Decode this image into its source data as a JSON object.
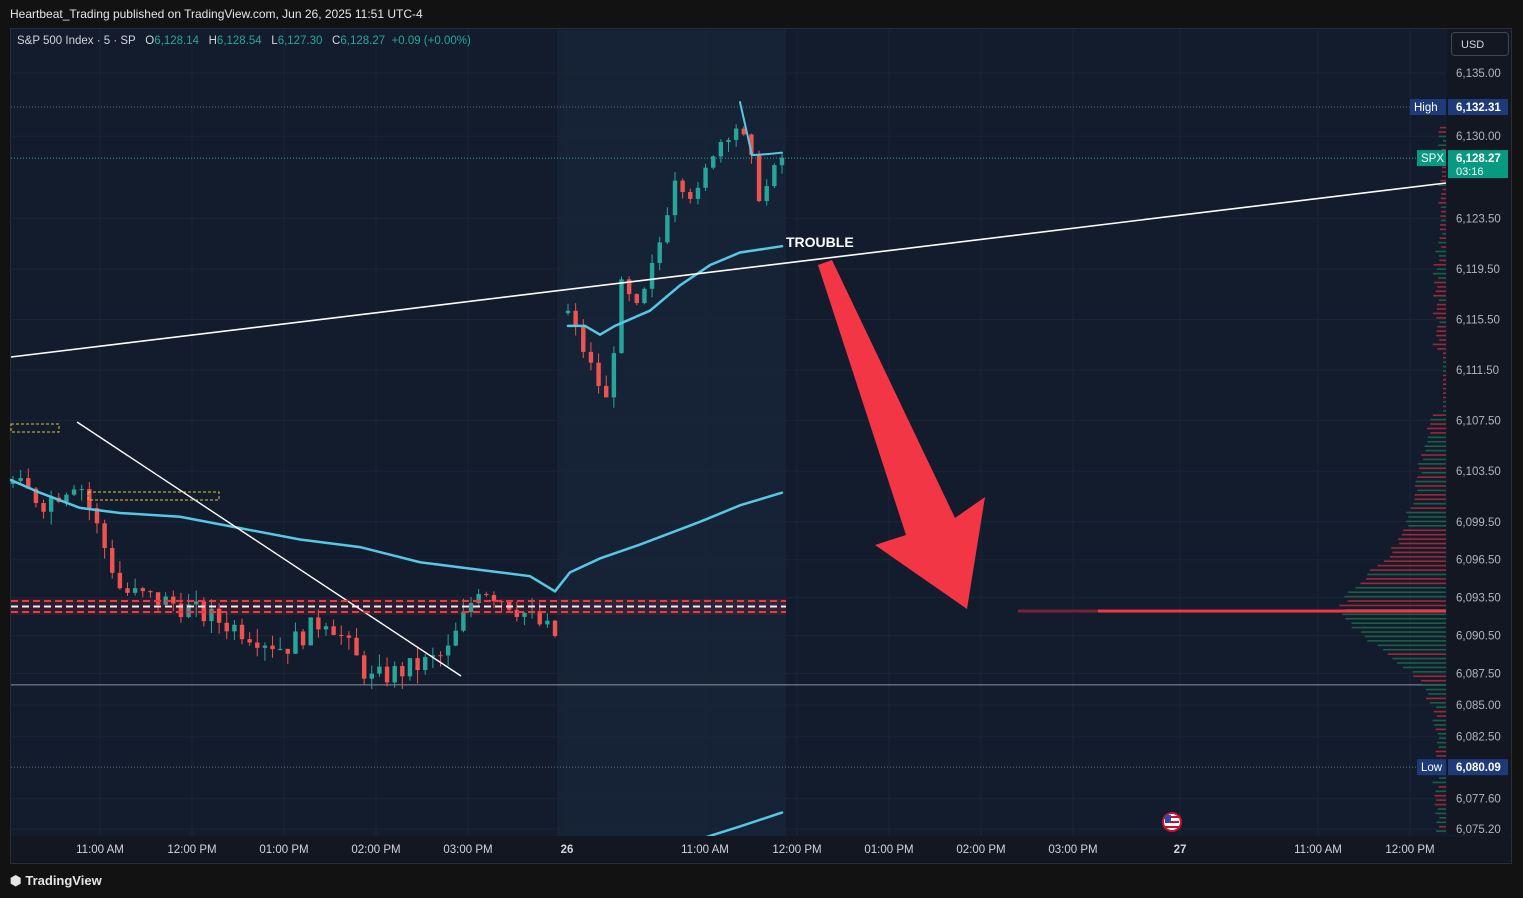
{
  "header": {
    "published": "Heartbeat_Trading published on TradingView.com, Jun 26, 2025 11:51 UTC-4"
  },
  "legend": {
    "symbol": "S&P 500 Index · 5 · SP",
    "o_label": "O",
    "o_value": "6,128.14",
    "h_label": "H",
    "h_value": "6,128.54",
    "l_label": "L",
    "l_value": "6,127.30",
    "c_label": "C",
    "c_value": "6,128.27",
    "change": "+0.09 (+0.00%)"
  },
  "currency_button": "USD",
  "footer": {
    "brand": "TradingView"
  },
  "colors": {
    "up": "#26a69a",
    "down": "#ef5350",
    "ma": "#56c8e6",
    "trendline": "#ffffff",
    "arrow": "#f23645",
    "background": "#131c2c"
  },
  "chart_data": {
    "type": "candlestick",
    "y_axis": {
      "min": 6074.0,
      "max": 6137.0,
      "ticks": [
        "6,135.00",
        "6,130.00",
        "6,123.50",
        "6,119.50",
        "6,115.50",
        "6,111.50",
        "6,107.50",
        "6,103.50",
        "6,099.50",
        "6,096.50",
        "6,093.50",
        "6,090.50",
        "6,087.50",
        "6,085.00",
        "6,082.50",
        "6,077.60",
        "6,075.20"
      ],
      "tick_values": [
        6135.0,
        6130.0,
        6123.5,
        6119.5,
        6115.5,
        6111.5,
        6107.5,
        6103.5,
        6099.5,
        6096.5,
        6093.5,
        6090.5,
        6087.5,
        6085.0,
        6082.5,
        6077.6,
        6075.2
      ]
    },
    "x_axis": {
      "labels": [
        "11:00 AM",
        "12:00 PM",
        "01:00 PM",
        "02:00 PM",
        "03:00 PM",
        "26",
        "11:00 AM",
        "12:00 PM",
        "01:00 PM",
        "02:00 PM",
        "03:00 PM",
        "27",
        "11:00 AM",
        "12:00 PM"
      ],
      "bold": [
        false,
        false,
        false,
        false,
        false,
        true,
        false,
        false,
        false,
        false,
        false,
        true,
        false,
        false
      ]
    },
    "price_labels": [
      {
        "tag": "High",
        "value": "6,132.31",
        "price": 6132.31,
        "color": "#1e3a78"
      },
      {
        "tag": "SPX",
        "value": "6,128.27",
        "sub": "03:16",
        "price": 6128.27,
        "color": "#089981"
      },
      {
        "tag": "Low",
        "value": "6,080.09",
        "price": 6080.09,
        "color": "#1e3a78"
      }
    ],
    "horizontal_line": 6086.6,
    "annotation": "TROUBLE",
    "volume_profile_poc": 6092.4
  }
}
